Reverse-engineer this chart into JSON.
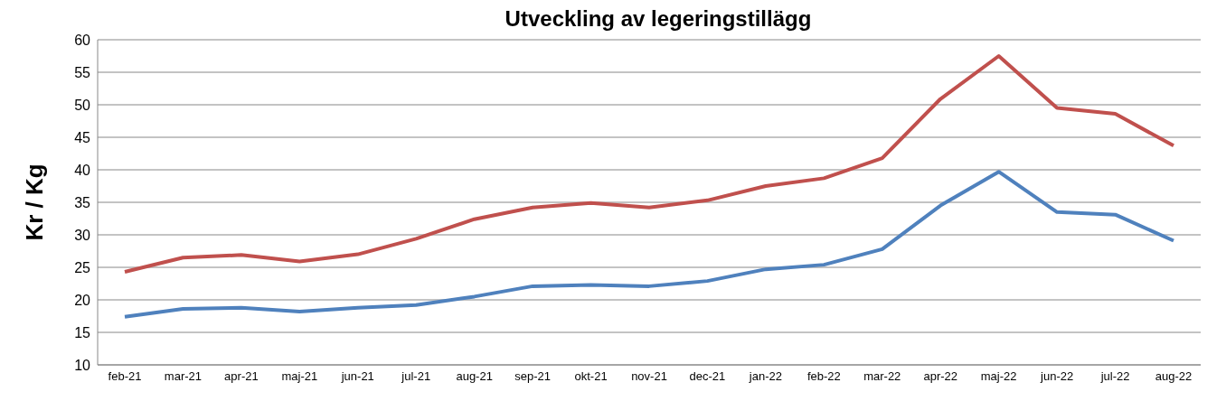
{
  "chart_data": {
    "type": "line",
    "title": "Utveckling av legeringstillägg",
    "ylabel": "Kr / Kg",
    "categories": [
      "feb-21",
      "mar-21",
      "apr-21",
      "maj-21",
      "jun-21",
      "jul-21",
      "aug-21",
      "sep-21",
      "okt-21",
      "nov-21",
      "dec-21",
      "jan-22",
      "feb-22",
      "mar-22",
      "apr-22",
      "maj-22",
      "jun-22",
      "jul-22",
      "aug-22"
    ],
    "series": [
      {
        "color": "#c0504d",
        "values": [
          24.3,
          26.5,
          26.9,
          25.9,
          27.0,
          29.4,
          32.4,
          34.2,
          34.9,
          34.2,
          35.3,
          37.5,
          38.7,
          41.8,
          50.9,
          57.5,
          49.5,
          48.6,
          43.7
        ]
      },
      {
        "color": "#4f81bd",
        "values": [
          17.4,
          18.6,
          18.8,
          18.2,
          18.8,
          19.2,
          20.5,
          22.1,
          22.3,
          22.1,
          22.9,
          24.7,
          25.4,
          27.8,
          34.5,
          39.7,
          33.5,
          33.1,
          29.1
        ]
      }
    ],
    "ylim": [
      10,
      60
    ],
    "yticks": [
      10,
      15,
      20,
      25,
      30,
      35,
      40,
      45,
      50,
      55,
      60
    ],
    "grid": "y",
    "legend": false,
    "marker": "none",
    "line_style": "solid"
  }
}
